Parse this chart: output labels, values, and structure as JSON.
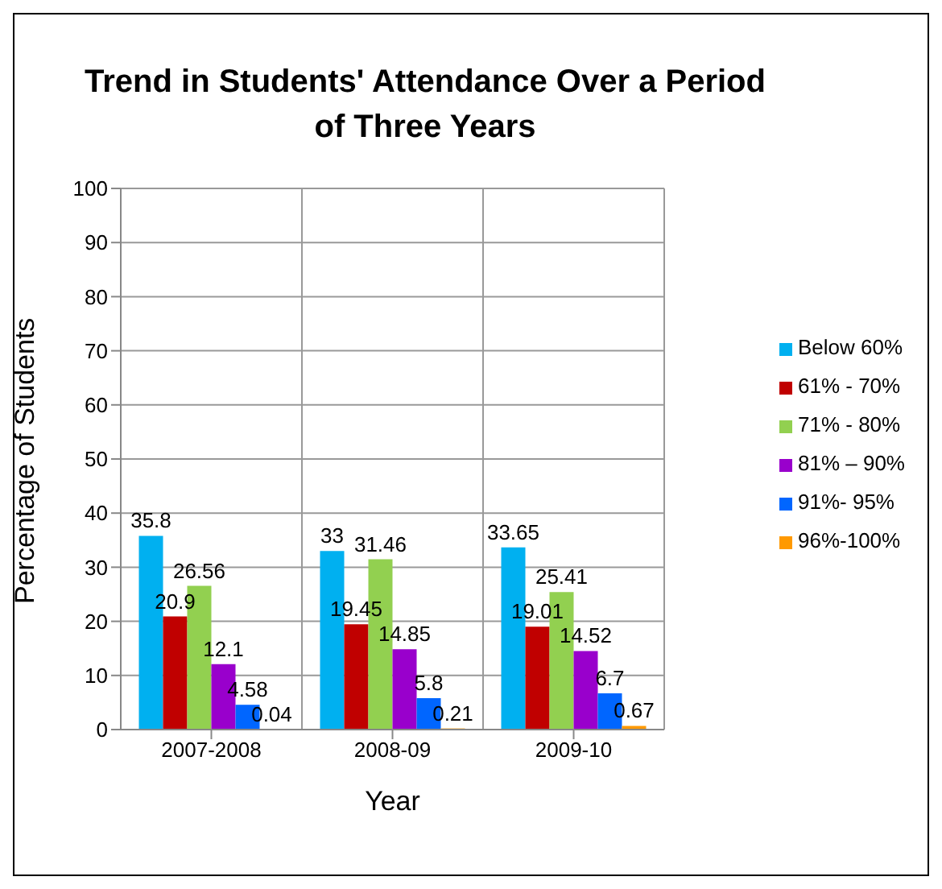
{
  "chart_data": {
    "type": "bar",
    "title": "Trend in Students' Attendance Over a Period of Three Years",
    "xlabel": "Year",
    "ylabel": "Percentage of Students",
    "categories": [
      "2007-2008",
      "2008-09",
      "2009-10"
    ],
    "series": [
      {
        "name": "Below 60%",
        "color": "#00b0f0",
        "values": [
          35.8,
          33,
          33.65
        ]
      },
      {
        "name": "61% - 70%",
        "color": "#c00000",
        "values": [
          20.9,
          19.45,
          19.01
        ]
      },
      {
        "name": "71% - 80%",
        "color": "#92d050",
        "values": [
          26.56,
          31.46,
          25.41
        ]
      },
      {
        "name": "81% – 90%",
        "color": "#9900cc",
        "values": [
          12.1,
          14.85,
          14.52
        ]
      },
      {
        "name": "91%-  95%",
        "color": "#0066ff",
        "values": [
          4.58,
          5.8,
          6.7
        ]
      },
      {
        "name": "96%-100%",
        "color": "#ff9900",
        "values": [
          0.04,
          0.21,
          0.67
        ]
      }
    ],
    "ylim": [
      0,
      100
    ],
    "yticks": [
      0,
      10,
      20,
      30,
      40,
      50,
      60,
      70,
      80,
      90,
      100
    ],
    "grid": true,
    "legend": "right",
    "data_labels": true
  }
}
